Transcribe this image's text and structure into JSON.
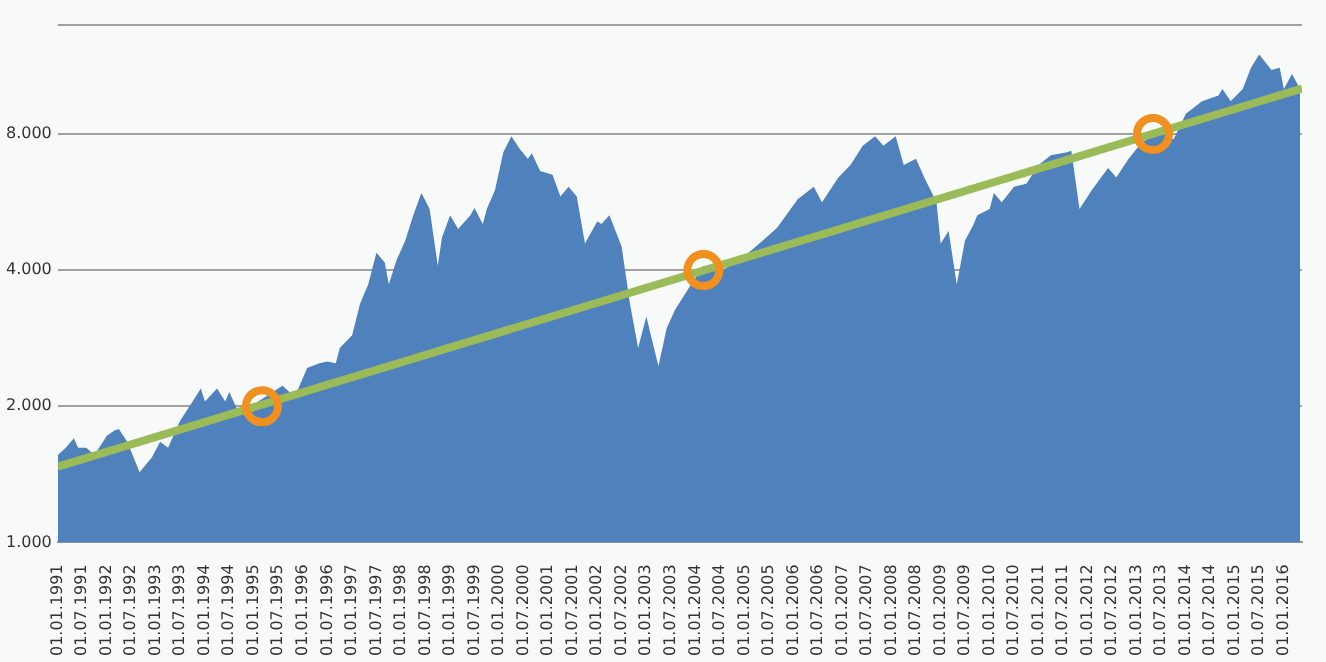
{
  "chart_data": {
    "type": "area",
    "log": "y",
    "grid": "y",
    "legend": false,
    "ylim": [
      1000,
      14000
    ],
    "yticks": [
      {
        "value": 1000,
        "label": "1.000"
      },
      {
        "value": 2000,
        "label": "2.000"
      },
      {
        "value": 4000,
        "label": "4.000"
      },
      {
        "value": 8000,
        "label": "8.000"
      }
    ],
    "xlim": [
      "1991-01-01",
      "2016-05-15"
    ],
    "xticks": [
      {
        "value": "1991-01-01",
        "label": "01.01.1991"
      },
      {
        "value": "1991-07-01",
        "label": "01.07.1991"
      },
      {
        "value": "1992-01-01",
        "label": "01.01.1992"
      },
      {
        "value": "1992-07-01",
        "label": "01.07.1992"
      },
      {
        "value": "1993-01-01",
        "label": "01.01.1993"
      },
      {
        "value": "1993-07-01",
        "label": "01.07.1993"
      },
      {
        "value": "1994-01-01",
        "label": "01.01.1994"
      },
      {
        "value": "1994-07-01",
        "label": "01.07.1994"
      },
      {
        "value": "1995-01-01",
        "label": "01.01.1995"
      },
      {
        "value": "1995-07-01",
        "label": "01.07.1995"
      },
      {
        "value": "1996-01-01",
        "label": "01.01.1996"
      },
      {
        "value": "1996-07-01",
        "label": "01.07.1996"
      },
      {
        "value": "1997-01-01",
        "label": "01.01.1997"
      },
      {
        "value": "1997-07-01",
        "label": "01.07.1997"
      },
      {
        "value": "1998-01-01",
        "label": "01.01.1998"
      },
      {
        "value": "1998-07-01",
        "label": "01.07.1998"
      },
      {
        "value": "1999-01-01",
        "label": "01.01.1999"
      },
      {
        "value": "1999-07-01",
        "label": "01.07.1999"
      },
      {
        "value": "2000-01-01",
        "label": "01.01.2000"
      },
      {
        "value": "2000-07-01",
        "label": "01.07.2000"
      },
      {
        "value": "2001-01-01",
        "label": "01.01.2001"
      },
      {
        "value": "2001-07-01",
        "label": "01.07.2001"
      },
      {
        "value": "2002-01-01",
        "label": "01.01.2002"
      },
      {
        "value": "2002-07-01",
        "label": "01.07.2002"
      },
      {
        "value": "2003-01-01",
        "label": "01.01.2003"
      },
      {
        "value": "2003-07-01",
        "label": "01.07.2003"
      },
      {
        "value": "2004-01-01",
        "label": "01.01.2004"
      },
      {
        "value": "2004-07-01",
        "label": "01.07.2004"
      },
      {
        "value": "2005-01-01",
        "label": "01.01.2005"
      },
      {
        "value": "2005-07-01",
        "label": "01.07.2005"
      },
      {
        "value": "2006-01-01",
        "label": "01.01.2006"
      },
      {
        "value": "2006-07-01",
        "label": "01.07.2006"
      },
      {
        "value": "2007-01-01",
        "label": "01.01.2007"
      },
      {
        "value": "2007-07-01",
        "label": "01.07.2007"
      },
      {
        "value": "2008-01-01",
        "label": "01.01.2008"
      },
      {
        "value": "2008-07-01",
        "label": "01.07.2008"
      },
      {
        "value": "2009-01-01",
        "label": "01.01.2009"
      },
      {
        "value": "2009-07-01",
        "label": "01.07.2009"
      },
      {
        "value": "2010-01-01",
        "label": "01.01.2010"
      },
      {
        "value": "2010-07-01",
        "label": "01.07.2010"
      },
      {
        "value": "2011-01-01",
        "label": "01.01.2011"
      },
      {
        "value": "2011-07-01",
        "label": "01.07.2011"
      },
      {
        "value": "2012-01-01",
        "label": "01.01.2012"
      },
      {
        "value": "2012-07-01",
        "label": "01.07.2012"
      },
      {
        "value": "2013-01-01",
        "label": "01.01.2013"
      },
      {
        "value": "2013-07-01",
        "label": "01.07.2013"
      },
      {
        "value": "2014-01-01",
        "label": "01.01.2014"
      },
      {
        "value": "2014-07-01",
        "label": "01.07.2014"
      },
      {
        "value": "2015-01-01",
        "label": "01.01.2015"
      },
      {
        "value": "2015-07-01",
        "label": "01.07.2015"
      },
      {
        "value": "2016-01-01",
        "label": "01.01.2016"
      }
    ],
    "series": [
      {
        "type": "area",
        "color": "#4f81bd",
        "x": [
          "1991-01",
          "1991-03",
          "1991-05",
          "1991-06",
          "1991-08",
          "1991-10",
          "1992-01",
          "1992-03",
          "1992-04",
          "1992-06",
          "1992-09",
          "1992-12",
          "1993-02",
          "1993-04",
          "1993-07",
          "1993-10",
          "1993-12",
          "1994-01",
          "1994-04",
          "1994-06",
          "1994-07",
          "1994-09",
          "1995-01",
          "1995-08",
          "1995-11",
          "1996-02",
          "1996-05",
          "1996-07",
          "1996-09",
          "1996-10",
          "1997-01",
          "1997-03",
          "1997-05",
          "1997-07",
          "1997-09",
          "1997-10",
          "1997-12",
          "1998-02",
          "1998-04",
          "1998-06",
          "1998-08",
          "1998-10",
          "1998-11",
          "1999-01",
          "1999-03",
          "1999-06",
          "1999-07",
          "1999-09",
          "1999-10",
          "1999-12",
          "2000-02",
          "2000-04",
          "2000-06",
          "2000-08",
          "2000-09",
          "2000-11",
          "2001-02",
          "2001-04",
          "2001-06",
          "2001-08",
          "2001-10",
          "2002-01",
          "2002-02",
          "2002-04",
          "2002-07",
          "2002-09",
          "2002-11",
          "2003-01",
          "2003-04",
          "2003-06",
          "2003-08",
          "2003-12",
          "2004-03",
          "2004-07",
          "2004-12",
          "2005-03",
          "2005-09",
          "2006-02",
          "2006-06",
          "2006-08",
          "2006-12",
          "2007-03",
          "2007-06",
          "2007-09",
          "2007-11",
          "2008-02",
          "2008-04",
          "2008-07",
          "2008-09",
          "2008-12",
          "2009-01",
          "2009-03",
          "2009-05",
          "2009-07",
          "2009-09",
          "2009-10",
          "2010-01",
          "2010-02",
          "2010-04",
          "2010-07",
          "2010-10",
          "2011-01",
          "2011-04",
          "2011-08",
          "2011-09",
          "2011-11",
          "2012-02",
          "2012-06",
          "2012-08",
          "2012-11",
          "2013-02",
          "2013-07",
          "2013-10",
          "2014-01",
          "2014-05",
          "2014-09",
          "2014-10",
          "2014-12",
          "2015-03",
          "2015-05",
          "2015-07",
          "2015-10",
          "2015-12",
          "2016-01",
          "2016-03",
          "2016-05"
        ],
        "values": [
          1560,
          1620,
          1700,
          1620,
          1620,
          1560,
          1720,
          1770,
          1780,
          1670,
          1430,
          1540,
          1670,
          1620,
          1860,
          2050,
          2190,
          2050,
          2190,
          2050,
          2150,
          1960,
          2020,
          2220,
          2100,
          2430,
          2490,
          2510,
          2490,
          2690,
          2870,
          3370,
          3720,
          4370,
          4160,
          3720,
          4230,
          4650,
          5290,
          5920,
          5460,
          4090,
          4720,
          5290,
          4930,
          5290,
          5490,
          5060,
          5460,
          6010,
          7290,
          7910,
          7420,
          7050,
          7240,
          6620,
          6500,
          5820,
          6110,
          5820,
          4580,
          5130,
          5060,
          5290,
          4510,
          3370,
          2690,
          3160,
          2450,
          2970,
          3260,
          3720,
          4090,
          3960,
          4230,
          4440,
          4960,
          5740,
          6110,
          5650,
          6410,
          6830,
          7530,
          7910,
          7530,
          7910,
          6830,
          7050,
          6410,
          5650,
          4580,
          4880,
          3720,
          4650,
          5030,
          5290,
          5460,
          5920,
          5650,
          6110,
          6210,
          6830,
          7180,
          7290,
          7340,
          5460,
          6010,
          6730,
          6410,
          7050,
          7630,
          8160,
          7780,
          8860,
          9450,
          9730,
          10060,
          9450,
          10060,
          11200,
          11980,
          11080,
          11200,
          10060,
          10860,
          10060
        ]
      },
      {
        "type": "line",
        "color": "#9bbb59",
        "x": [
          "1991-01-01",
          "2016-05-15"
        ],
        "values": [
          1470,
          10080
        ]
      },
      {
        "type": "scatter",
        "color": "#f0901e",
        "marker": "circle",
        "x": [
          "1995-03",
          "2004-03",
          "2013-05"
        ],
        "values": [
          2000,
          4000,
          8000
        ]
      }
    ]
  }
}
